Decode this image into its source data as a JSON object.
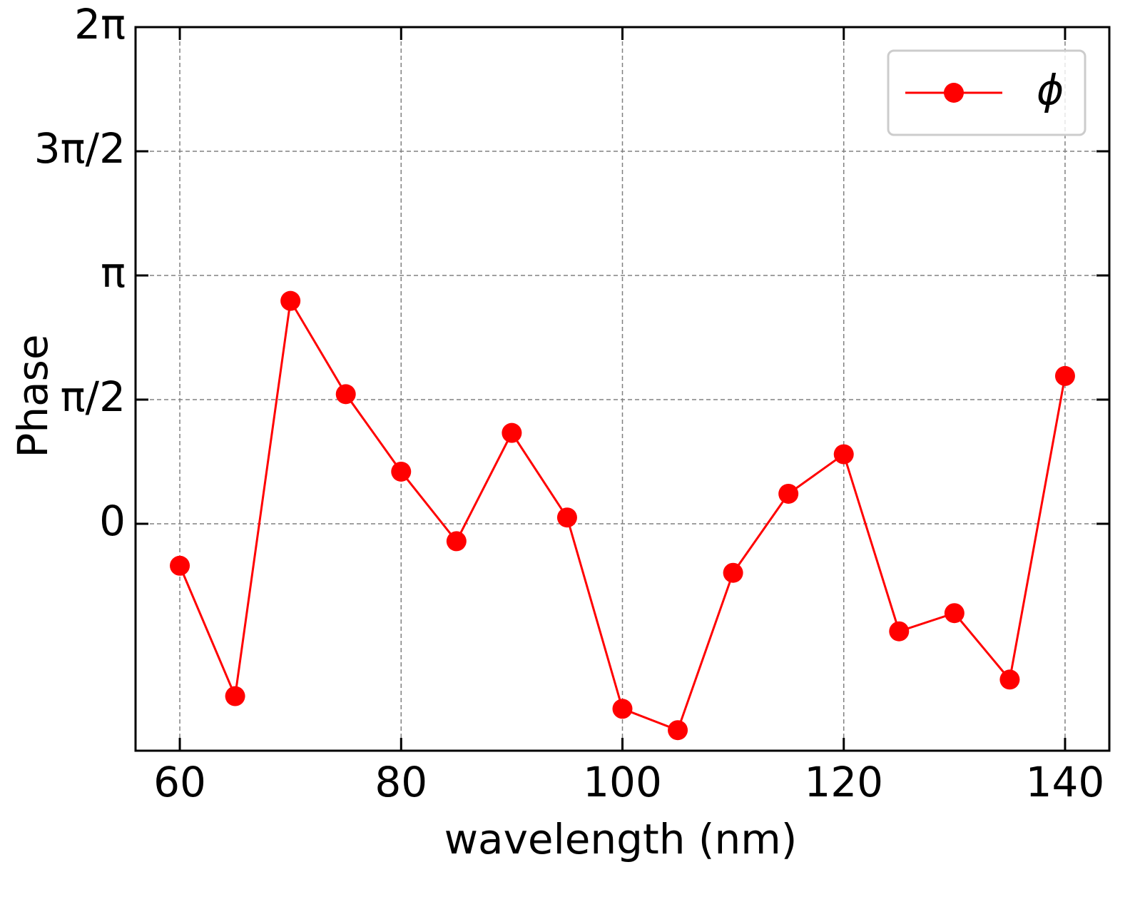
{
  "chart_data": {
    "type": "line",
    "x_label": "wavelength (nm)",
    "y_label": "Phase",
    "x": [
      60,
      65,
      70,
      75,
      80,
      85,
      90,
      95,
      100,
      105,
      110,
      115,
      120,
      125,
      130,
      135,
      140
    ],
    "series": [
      {
        "name": "ϕ",
        "color": "#ff0000",
        "values": [
          -0.53,
          -2.18,
          2.82,
          1.64,
          0.66,
          -0.22,
          1.15,
          0.08,
          -2.34,
          -2.61,
          -0.62,
          0.38,
          0.88,
          -1.36,
          -1.13,
          -1.97,
          1.87
        ]
      }
    ],
    "xlim": [
      56,
      144
    ],
    "xticks": [
      60,
      80,
      100,
      120,
      140
    ],
    "ylim": [
      -2.87,
      6.2832
    ],
    "yticks": [
      0,
      {
        "value": 1.5708,
        "label": "π/2"
      },
      {
        "value": 3.1416,
        "label": "π"
      },
      {
        "value": 4.7124,
        "label": "3π/2"
      },
      {
        "value": 6.2832,
        "label": "2π"
      }
    ],
    "grid": true,
    "legend": "upper right"
  }
}
